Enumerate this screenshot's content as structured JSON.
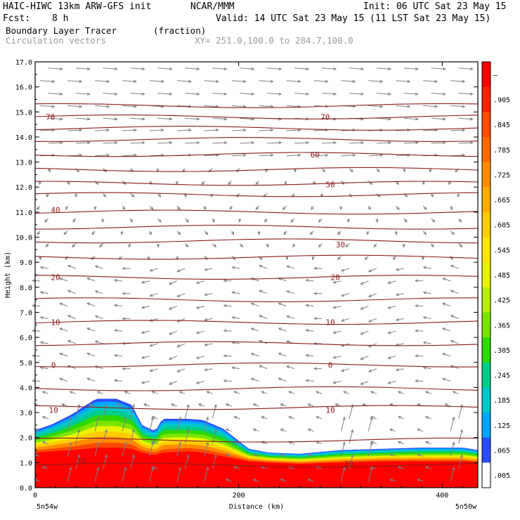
{
  "header": {
    "model": "HAIC-HIWC 13km ARW-GFS init",
    "org": "NCAR/MMM",
    "init": "Init: 06 UTC Sat 23 May 15",
    "fcst_label": "Fcst:",
    "fcst_value": "8 h",
    "valid": "Valid: 14 UTC Sat 23 May 15 (11 LST Sat 23 May 15)",
    "field": "Boundary Layer Tracer",
    "units": "(fraction)",
    "overlay": "Circulation vectors",
    "xy": "XY= 251.0,100.0 to 284.7,100.0"
  },
  "colors": {
    "contour": "#8b1a1a",
    "vector": "#7f7f7f",
    "axis": "#000000"
  },
  "chart_data": {
    "type": "heatmap",
    "title": "Boundary Layer Tracer",
    "xlabel": "Distance (km)",
    "ylabel": "Height (km)",
    "xlim": [
      0,
      435
    ],
    "ylim": [
      0,
      17
    ],
    "x_ticks": [
      "0",
      "200",
      "400"
    ],
    "y_ticks": [
      "0.0",
      "1.0",
      "2.0",
      "3.0",
      "4.0",
      "5.0",
      "6.0",
      "7.0",
      "8.0",
      "9.0",
      "10.0",
      "11.0",
      "12.0",
      "13.0",
      "14.0",
      "15.0",
      "16.0",
      "17.0"
    ],
    "x_end_labels": {
      "left": "5n54w",
      "right": "5n50w"
    },
    "colorbar": {
      "labels": [
        "–",
        ".905",
        ".845",
        ".785",
        ".725",
        ".665",
        ".605",
        ".545",
        ".485",
        ".425",
        ".365",
        ".305",
        ".245",
        ".185",
        ".125",
        ".065",
        ".005"
      ],
      "colors": [
        "#ff0000",
        "#ff2400",
        "#ff4800",
        "#ff6a00",
        "#ff8c00",
        "#ffac00",
        "#ffcc00",
        "#ffe600",
        "#eaf200",
        "#b8ee00",
        "#7ae400",
        "#2ed800",
        "#00cc8a",
        "#00c8c8",
        "#00a6ff",
        "#2a4dff",
        "#ffffff"
      ]
    },
    "tracer_top": {
      "x": [
        0,
        15,
        35,
        50,
        60,
        80,
        95,
        105,
        118,
        125,
        150,
        165,
        185,
        210,
        230,
        260,
        300,
        340,
        380,
        420,
        435
      ],
      "top_km": [
        2.3,
        2.5,
        2.9,
        3.3,
        3.55,
        3.55,
        3.3,
        2.5,
        2.25,
        2.75,
        2.75,
        2.7,
        2.35,
        1.55,
        1.4,
        1.35,
        1.5,
        1.55,
        1.6,
        1.6,
        1.5
      ],
      "red_top_km": [
        1.4,
        1.45,
        1.5,
        1.55,
        1.6,
        1.6,
        1.55,
        1.4,
        1.3,
        1.4,
        1.45,
        1.4,
        1.25,
        1.05,
        1.0,
        0.95,
        1.0,
        1.05,
        1.05,
        1.05,
        1.0
      ]
    },
    "contour_labels": [
      {
        "text": "70",
        "x": 15,
        "y": 14.8
      },
      {
        "text": "70",
        "x": 285,
        "y": 14.8
      },
      {
        "text": "60",
        "x": 275,
        "y": 13.3
      },
      {
        "text": "50",
        "x": 290,
        "y": 12.1
      },
      {
        "text": "40",
        "x": 20,
        "y": 11.1
      },
      {
        "text": "30",
        "x": 300,
        "y": 9.7
      },
      {
        "text": "20",
        "x": 20,
        "y": 8.4
      },
      {
        "text": "20",
        "x": 295,
        "y": 8.4
      },
      {
        "text": "10",
        "x": 20,
        "y": 6.6
      },
      {
        "text": "10",
        "x": 290,
        "y": 6.6
      },
      {
        "text": "0",
        "x": 18,
        "y": 4.9
      },
      {
        "text": "0",
        "x": 290,
        "y": 4.9
      },
      {
        "text": "10",
        "x": 18,
        "y": 3.1
      },
      {
        "text": "10",
        "x": 290,
        "y": 3.1
      },
      {
        "text": "20",
        "x": 45,
        "y": 1.05
      },
      {
        "text": "20",
        "x": 308,
        "y": 0.95
      }
    ],
    "contour_levels_km": [
      0.9,
      1.9,
      3.2,
      3.95,
      4.9,
      5.75,
      6.6,
      7.5,
      8.4,
      9.2,
      9.85,
      10.4,
      11.0,
      11.7,
      12.15,
      12.7,
      13.3,
      13.9,
      14.35,
      14.8,
      15.25
    ]
  }
}
